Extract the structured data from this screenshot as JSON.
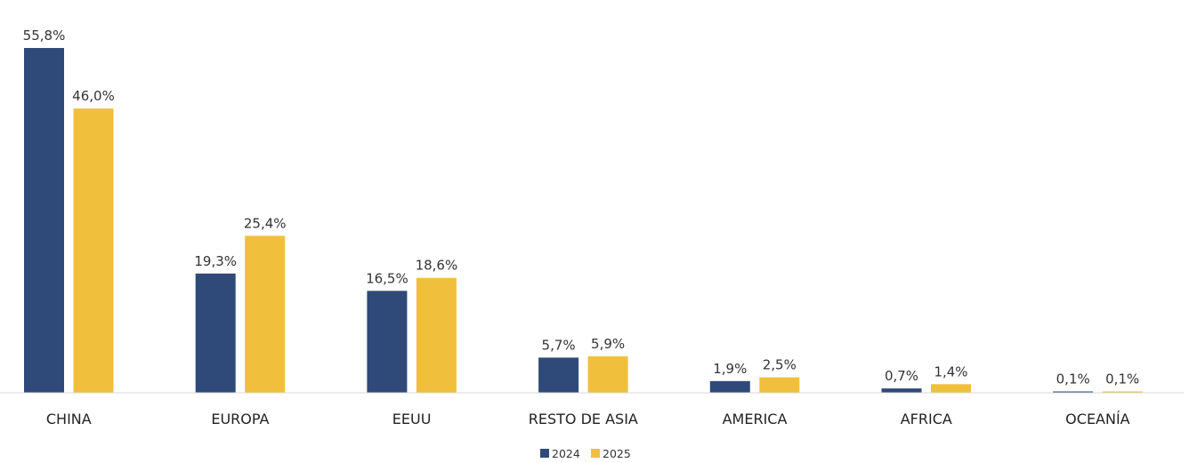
{
  "chart_data": {
    "type": "bar",
    "title": "",
    "xlabel": "",
    "ylabel": "",
    "ylim": [
      0,
      56
    ],
    "grid": false,
    "legend": "bottom-center",
    "categories": [
      "CHINA",
      "EUROPA",
      "EEUU",
      "RESTO DE ASIA",
      "AMERICA",
      "AFRICA",
      "OCEANÍA"
    ],
    "series": [
      {
        "name": "2024",
        "color": "#2f4a78",
        "values": [
          55.8,
          19.3,
          16.5,
          5.7,
          1.9,
          0.7,
          0.1
        ],
        "labels": [
          "55,8%",
          "19,3%",
          "16,5%",
          "5,7%",
          "1,9%",
          "0,7%",
          "0,1%"
        ]
      },
      {
        "name": "2025",
        "color": "#f0bf3c",
        "values": [
          46.0,
          25.4,
          18.6,
          5.9,
          2.5,
          1.4,
          0.1
        ],
        "labels": [
          "46,0%",
          "25,4%",
          "18,6%",
          "5,9%",
          "2,5%",
          "1,4%",
          "0,1%"
        ]
      }
    ]
  },
  "legend": {
    "items": [
      {
        "label": "2024",
        "color": "#2f4a78"
      },
      {
        "label": "2025",
        "color": "#f0bf3c"
      }
    ]
  }
}
